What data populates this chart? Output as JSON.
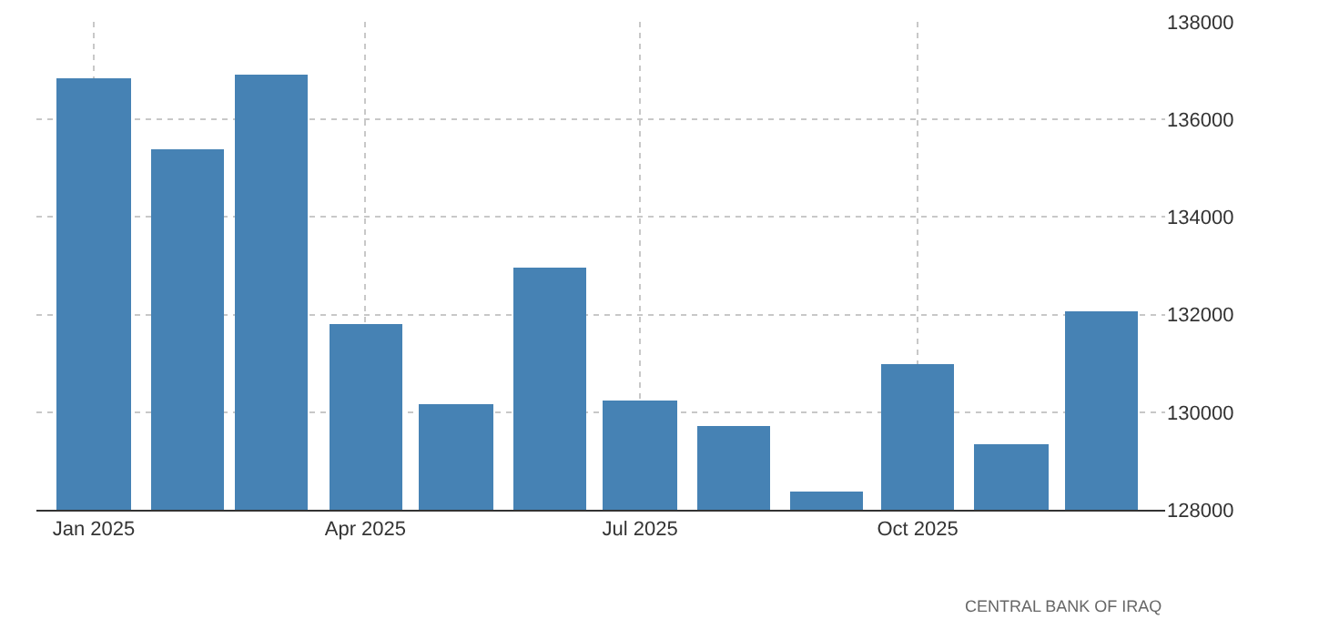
{
  "chart_data": {
    "type": "bar",
    "x": [
      "2025-01",
      "2025-02",
      "2025-03",
      "2025-04",
      "2025-05",
      "2025-06",
      "2025-07",
      "2025-08",
      "2025-09",
      "2025-10",
      "2025-11",
      "2025-12"
    ],
    "values": [
      136850,
      135380,
      136920,
      131820,
      130160,
      132950,
      130230,
      129710,
      128370,
      130980,
      129340,
      132080
    ],
    "color": "#4682b4",
    "xlim": [
      "2024-12-13",
      "2025-12-22"
    ],
    "xticks": [
      {
        "value": "2025-01",
        "label": "Jan 2025"
      },
      {
        "value": "2025-04",
        "label": "Apr 2025"
      },
      {
        "value": "2025-07",
        "label": "Jul 2025"
      },
      {
        "value": "2025-10",
        "label": "Oct 2025"
      }
    ],
    "ylim": [
      128000,
      138000
    ],
    "yticks": [
      128000,
      130000,
      132000,
      134000,
      136000,
      138000
    ],
    "grid": true,
    "annotations": [
      "CENTRAL BANK OF IRAQ"
    ]
  }
}
